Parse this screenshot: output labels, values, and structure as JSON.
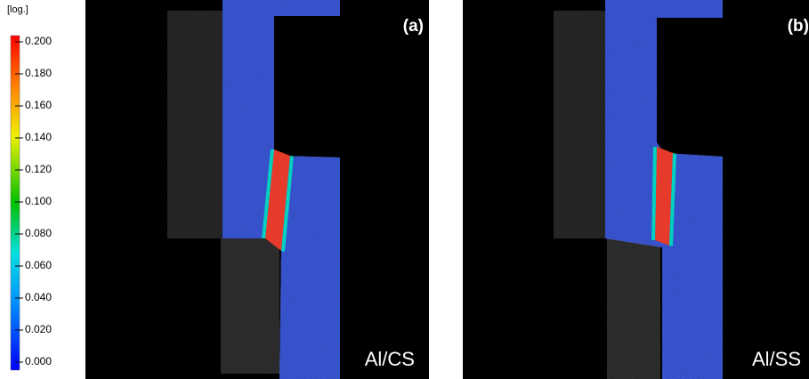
{
  "colorbar": {
    "unit": "[log.]",
    "ticks": [
      "0.200",
      "0.180",
      "0.160",
      "0.140",
      "0.120",
      "0.100",
      "0.080",
      "0.060",
      "0.040",
      "0.020",
      "0.000"
    ]
  },
  "panels": [
    {
      "label": "(a)",
      "caption": "Al/CS"
    },
    {
      "label": "(b)",
      "caption": "Al/SS"
    }
  ]
}
